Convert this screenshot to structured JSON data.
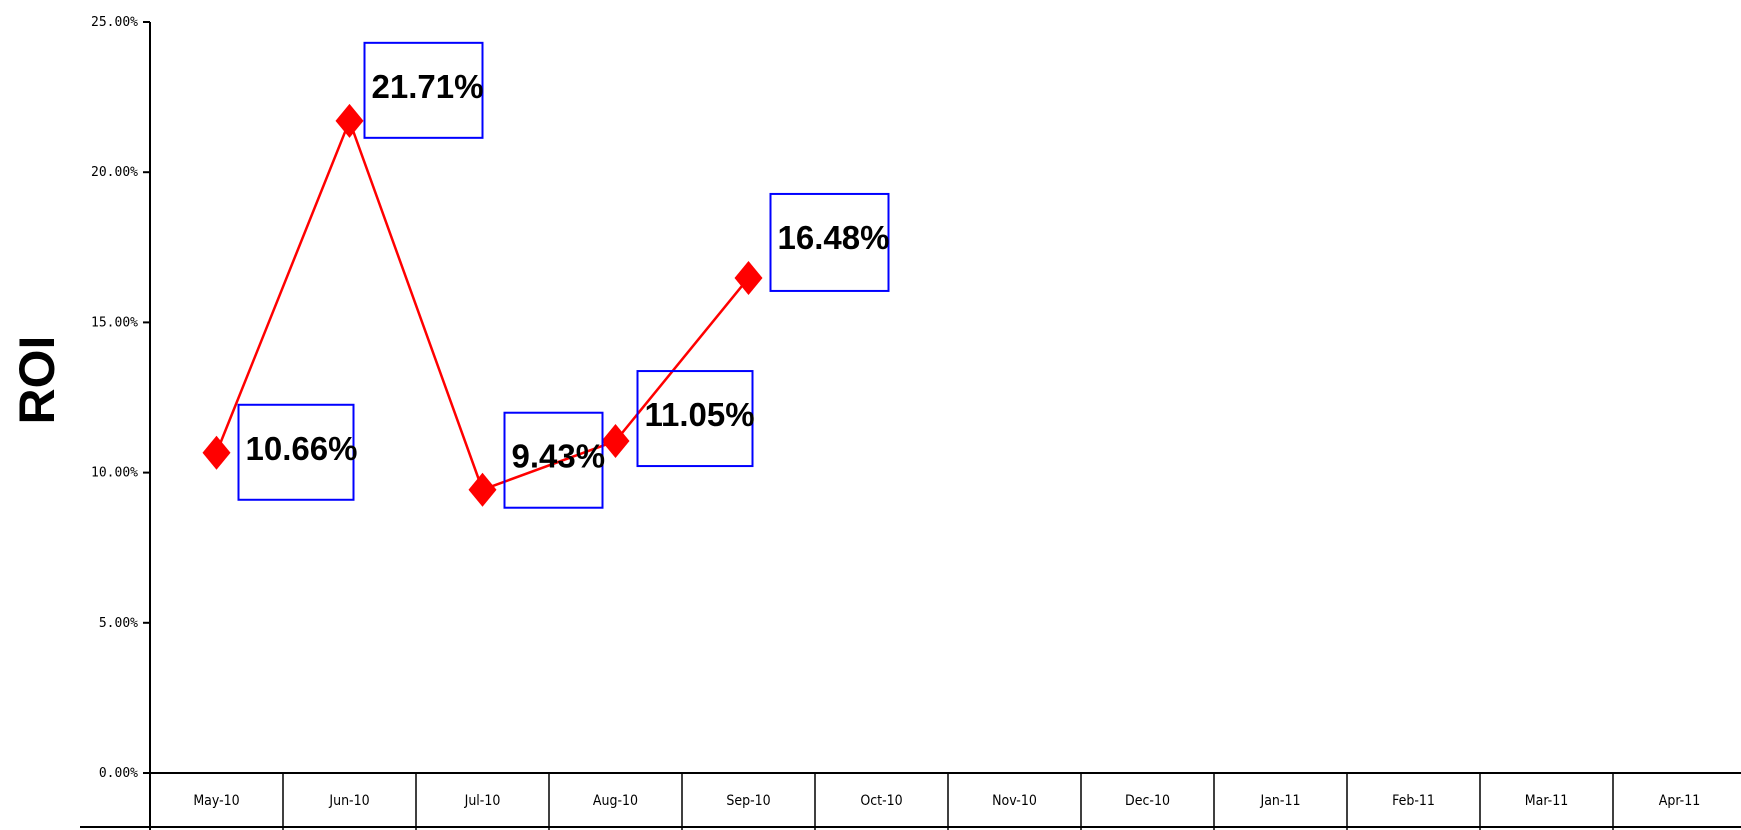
{
  "chart_data": {
    "type": "line",
    "title": "",
    "ylabel": "ROI",
    "xlabel": "",
    "ylim": [
      0,
      25
    ],
    "y_ticks": [
      0,
      5,
      10,
      15,
      20,
      25
    ],
    "y_tick_labels": [
      "0.00%",
      "5.00%",
      "10.00%",
      "15.00%",
      "20.00%",
      "25.00%"
    ],
    "categories": [
      "May-10",
      "Jun-10",
      "Jul-10",
      "Aug-10",
      "Sep-10",
      "Oct-10",
      "Nov-10",
      "Dec-10",
      "Jan-11",
      "Feb-11",
      "Mar-11",
      "Apr-11"
    ],
    "series": [
      {
        "values": [
          10.66,
          21.71,
          9.43,
          11.05,
          16.48,
          null,
          null,
          null,
          null,
          null,
          null,
          null
        ],
        "data_labels": [
          "10.66%",
          "21.71%",
          "9.43%",
          "11.05%",
          "16.48%"
        ],
        "color": "#ff0000",
        "marker": "diamond"
      }
    ],
    "label_box_color": "#0000ff",
    "grid": false,
    "legend": "none"
  }
}
